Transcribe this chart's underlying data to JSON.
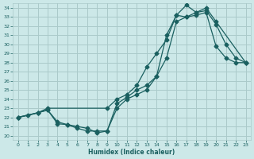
{
  "xlabel": "Humidex (Indice chaleur)",
  "ylabel": "",
  "bg_color": "#cce8e8",
  "grid_color": "#aacaca",
  "line_color": "#1a6060",
  "xlim": [
    -0.5,
    23.5
  ],
  "ylim": [
    19.5,
    34.5
  ],
  "xticks": [
    0,
    1,
    2,
    3,
    4,
    5,
    6,
    7,
    8,
    9,
    10,
    11,
    12,
    13,
    14,
    15,
    16,
    17,
    18,
    19,
    20,
    21,
    22,
    23
  ],
  "yticks": [
    20,
    21,
    22,
    23,
    24,
    25,
    26,
    27,
    28,
    29,
    30,
    31,
    32,
    33,
    34
  ],
  "line1_x": [
    0,
    1,
    2,
    3,
    4,
    5,
    6,
    7,
    8,
    9,
    10,
    11,
    12,
    13,
    14,
    15,
    16,
    17,
    18,
    19,
    20,
    21,
    22,
    23
  ],
  "line1_y": [
    22.0,
    22.2,
    22.5,
    22.8,
    21.3,
    21.2,
    20.8,
    20.5,
    20.5,
    20.5,
    23.0,
    24.0,
    24.5,
    25.0,
    26.5,
    31.0,
    33.2,
    34.3,
    33.5,
    33.7,
    32.2,
    30.0,
    28.5,
    28.0
  ],
  "line2_x": [
    0,
    2,
    3,
    9,
    10,
    11,
    12,
    13,
    14,
    15,
    16,
    17,
    18,
    19,
    20,
    23
  ],
  "line2_y": [
    22.0,
    22.5,
    23.0,
    23.0,
    24.0,
    24.5,
    25.5,
    27.5,
    29.0,
    30.5,
    33.2,
    33.0,
    33.5,
    34.0,
    32.5,
    28.0
  ],
  "line3_x": [
    0,
    2,
    3,
    4,
    5,
    6,
    7,
    8,
    9,
    10,
    11,
    12,
    13,
    14,
    15,
    16,
    17,
    18,
    19,
    20,
    21,
    22,
    23
  ],
  "line3_y": [
    22.0,
    22.5,
    22.8,
    21.5,
    21.2,
    21.0,
    20.8,
    20.3,
    20.5,
    23.5,
    24.2,
    25.0,
    25.5,
    26.5,
    28.5,
    32.5,
    33.0,
    33.2,
    33.5,
    29.8,
    28.5,
    28.0,
    28.0
  ]
}
